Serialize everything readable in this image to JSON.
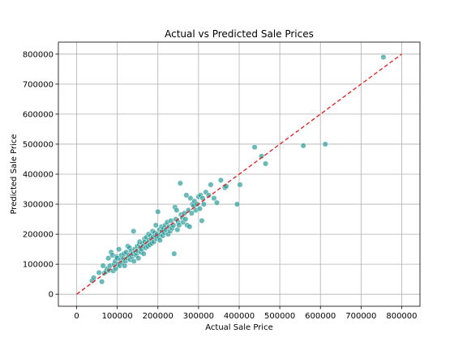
{
  "chart_data": {
    "type": "scatter",
    "title": "Actual vs Predicted Sale Prices",
    "xlabel": "Actual Sale Price",
    "ylabel": "Predicted Sale Price",
    "xlim": [
      -45000,
      845000
    ],
    "ylim": [
      -40000,
      840000
    ],
    "grid": true,
    "xticks": [
      0,
      100000,
      200000,
      300000,
      400000,
      500000,
      600000,
      700000,
      800000
    ],
    "yticks": [
      0,
      100000,
      200000,
      300000,
      400000,
      500000,
      600000,
      700000,
      800000
    ],
    "reference_line": {
      "x": [
        0,
        800000
      ],
      "y": [
        0,
        800000
      ],
      "style": "dashed",
      "color": "#e41a1c"
    },
    "point_color": "#2a9d9a",
    "points": [
      [
        38000,
        45000
      ],
      [
        42000,
        55000
      ],
      [
        55000,
        72000
      ],
      [
        62000,
        42000
      ],
      [
        65000,
        95000
      ],
      [
        68000,
        70000
      ],
      [
        72000,
        75000
      ],
      [
        75000,
        85000
      ],
      [
        78000,
        120000
      ],
      [
        80000,
        80000
      ],
      [
        82000,
        95000
      ],
      [
        85000,
        140000
      ],
      [
        88000,
        130000
      ],
      [
        90000,
        78000
      ],
      [
        92000,
        100000
      ],
      [
        95000,
        110000
      ],
      [
        96000,
        85000
      ],
      [
        98000,
        125000
      ],
      [
        100000,
        120000
      ],
      [
        102000,
        100000
      ],
      [
        104000,
        150000
      ],
      [
        106000,
        95000
      ],
      [
        108000,
        115000
      ],
      [
        110000,
        130000
      ],
      [
        112000,
        105000
      ],
      [
        115000,
        120000
      ],
      [
        117000,
        135000
      ],
      [
        118000,
        95000
      ],
      [
        120000,
        110000
      ],
      [
        122000,
        140000
      ],
      [
        125000,
        120000
      ],
      [
        126000,
        160000
      ],
      [
        128000,
        130000
      ],
      [
        130000,
        155000
      ],
      [
        132000,
        115000
      ],
      [
        134000,
        145000
      ],
      [
        136000,
        125000
      ],
      [
        138000,
        135000
      ],
      [
        140000,
        210000
      ],
      [
        141000,
        110000
      ],
      [
        143000,
        150000
      ],
      [
        145000,
        140000
      ],
      [
        147000,
        130000
      ],
      [
        149000,
        160000
      ],
      [
        150000,
        145000
      ],
      [
        152000,
        120000
      ],
      [
        154000,
        165000
      ],
      [
        155000,
        175000
      ],
      [
        157000,
        155000
      ],
      [
        158000,
        140000
      ],
      [
        160000,
        150000
      ],
      [
        162000,
        170000
      ],
      [
        164000,
        160000
      ],
      [
        165000,
        135000
      ],
      [
        167000,
        185000
      ],
      [
        168000,
        175000
      ],
      [
        170000,
        155000
      ],
      [
        172000,
        190000
      ],
      [
        174000,
        170000
      ],
      [
        175000,
        160000
      ],
      [
        177000,
        200000
      ],
      [
        178000,
        180000
      ],
      [
        180000,
        165000
      ],
      [
        182000,
        195000
      ],
      [
        184000,
        185000
      ],
      [
        185000,
        170000
      ],
      [
        187000,
        210000
      ],
      [
        188000,
        190000
      ],
      [
        190000,
        175000
      ],
      [
        192000,
        205000
      ],
      [
        194000,
        195000
      ],
      [
        195000,
        230000
      ],
      [
        197000,
        185000
      ],
      [
        198000,
        200000
      ],
      [
        200000,
        275000
      ],
      [
        202000,
        190000
      ],
      [
        204000,
        215000
      ],
      [
        205000,
        180000
      ],
      [
        207000,
        200000
      ],
      [
        209000,
        225000
      ],
      [
        210000,
        210000
      ],
      [
        212000,
        195000
      ],
      [
        214000,
        220000
      ],
      [
        216000,
        205000
      ],
      [
        218000,
        230000
      ],
      [
        220000,
        215000
      ],
      [
        223000,
        240000
      ],
      [
        225000,
        200000
      ],
      [
        228000,
        225000
      ],
      [
        230000,
        210000
      ],
      [
        232000,
        245000
      ],
      [
        235000,
        220000
      ],
      [
        238000,
        230000
      ],
      [
        240000,
        135000
      ],
      [
        242000,
        290000
      ],
      [
        244000,
        250000
      ],
      [
        246000,
        280000
      ],
      [
        248000,
        215000
      ],
      [
        250000,
        240000
      ],
      [
        252000,
        230000
      ],
      [
        255000,
        370000
      ],
      [
        257000,
        265000
      ],
      [
        260000,
        255000
      ],
      [
        262000,
        240000
      ],
      [
        265000,
        270000
      ],
      [
        268000,
        250000
      ],
      [
        270000,
        330000
      ],
      [
        272000,
        230000
      ],
      [
        275000,
        280000
      ],
      [
        278000,
        225000
      ],
      [
        280000,
        320000
      ],
      [
        283000,
        270000
      ],
      [
        285000,
        300000
      ],
      [
        288000,
        295000
      ],
      [
        290000,
        310000
      ],
      [
        293000,
        280000
      ],
      [
        296000,
        300000
      ],
      [
        300000,
        325000
      ],
      [
        303000,
        285000
      ],
      [
        305000,
        330000
      ],
      [
        308000,
        245000
      ],
      [
        310000,
        320000
      ],
      [
        313000,
        300000
      ],
      [
        318000,
        340000
      ],
      [
        325000,
        330000
      ],
      [
        330000,
        365000
      ],
      [
        338000,
        320000
      ],
      [
        345000,
        305000
      ],
      [
        355000,
        380000
      ],
      [
        365000,
        355000
      ],
      [
        368000,
        360000
      ],
      [
        395000,
        300000
      ],
      [
        402000,
        365000
      ],
      [
        438000,
        490000
      ],
      [
        455000,
        460000
      ],
      [
        465000,
        435000
      ],
      [
        558000,
        495000
      ],
      [
        612000,
        500000
      ],
      [
        755000,
        790000
      ]
    ]
  }
}
